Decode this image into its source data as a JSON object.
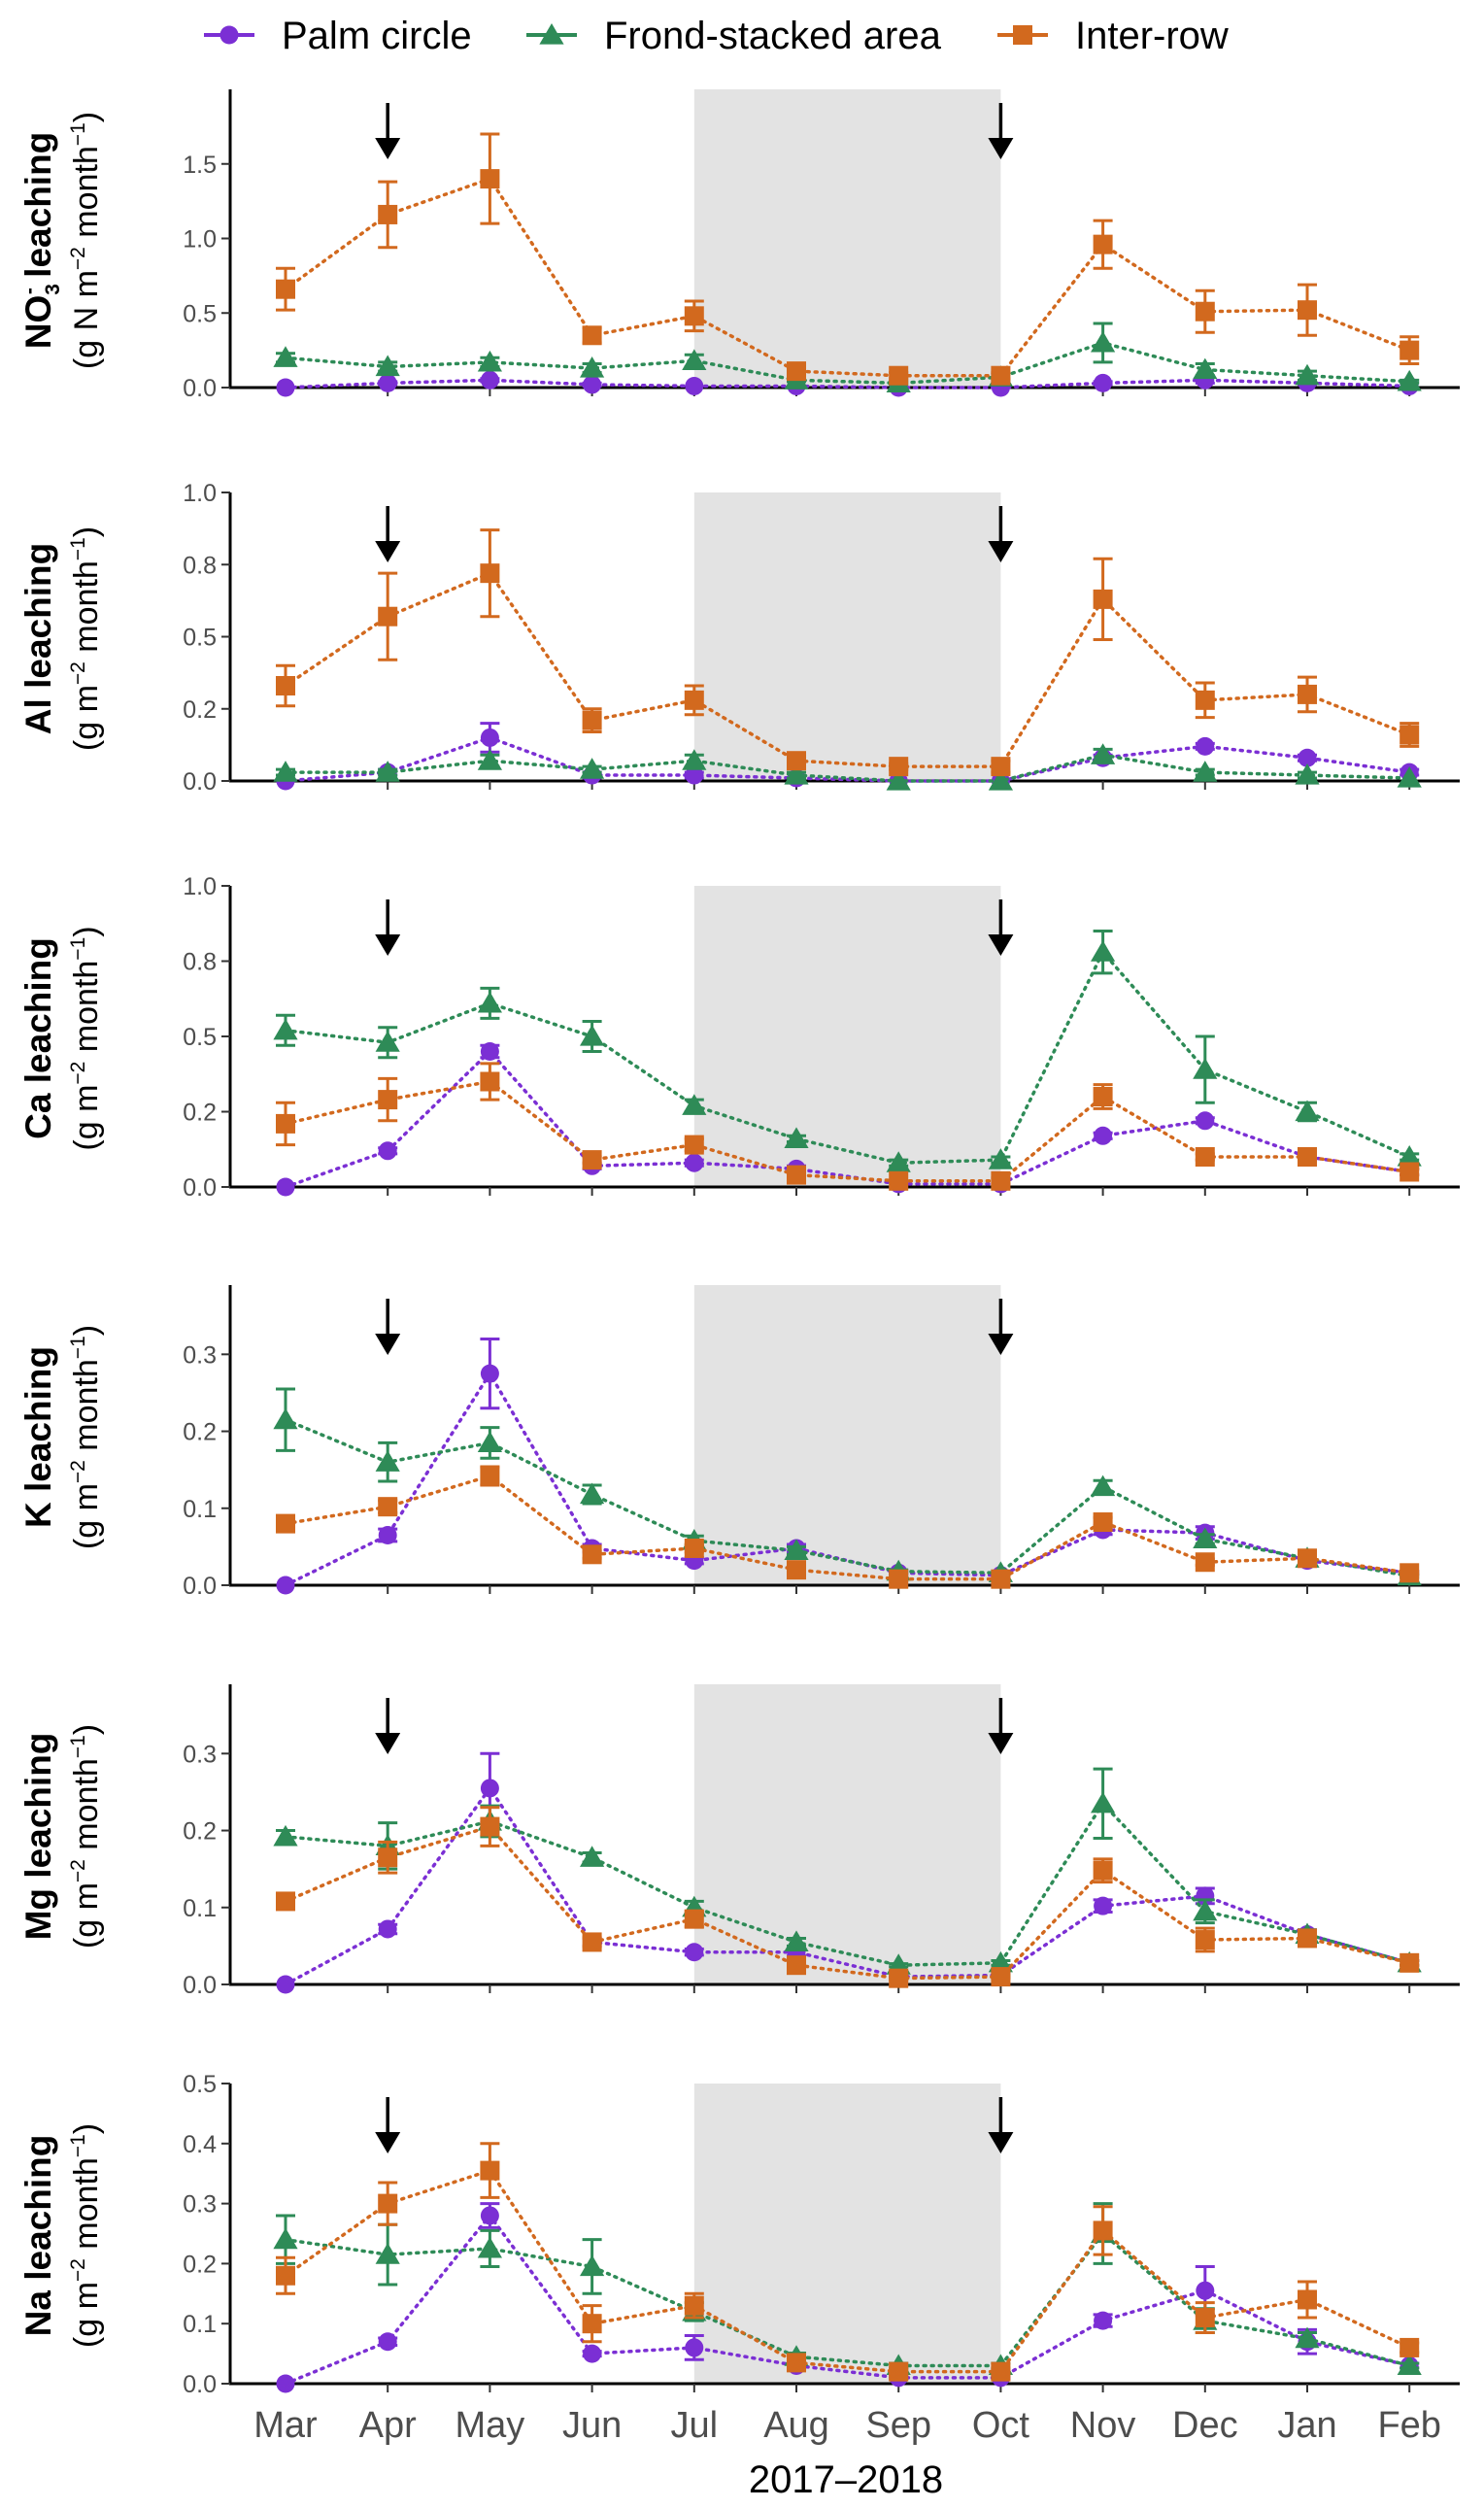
{
  "chart_data": {
    "type": "line",
    "x_label": "2017–2018",
    "months": [
      "Mar",
      "Apr",
      "May",
      "Jun",
      "Jul",
      "Aug",
      "Sep",
      "Oct",
      "Nov",
      "Dec",
      "Jan",
      "Feb"
    ],
    "shaded_period": [
      "Jul",
      "Oct"
    ],
    "arrow_months": [
      "Apr",
      "Oct"
    ],
    "legend": [
      {
        "name": "Palm circle",
        "color": "#7B2FD4",
        "marker": "circle"
      },
      {
        "name": "Frond-stacked area",
        "color": "#2E8B57",
        "marker": "triangle"
      },
      {
        "name": "Inter-row",
        "color": "#D2691E",
        "marker": "square"
      }
    ],
    "panels": [
      {
        "id": "no3",
        "title_main": "NO",
        "title_sub": "3",
        "title_sup": "-",
        "title_rest": " leaching",
        "unit": "(g N  m",
        "unit_sup1": "−2",
        "unit_mid": " month",
        "unit_sup2": "−1",
        "unit_end": ")",
        "ylim": [
          0,
          2.0
        ],
        "yticks": [
          0.0,
          0.5,
          1.0,
          1.5
        ],
        "ytick_labels": [
          "0.0",
          "0.5",
          "1.0",
          "1.5"
        ],
        "series": [
          {
            "name": "Palm circle",
            "values": [
              0.0,
              0.03,
              0.05,
              0.02,
              0.01,
              0.01,
              0.0,
              0.0,
              0.03,
              0.05,
              0.03,
              0.01
            ],
            "err": [
              0,
              0.01,
              0.01,
              0.01,
              0,
              0,
              0,
              0,
              0.01,
              0.02,
              0.01,
              0
            ]
          },
          {
            "name": "Frond-stacked area",
            "values": [
              0.2,
              0.14,
              0.17,
              0.13,
              0.18,
              0.05,
              0.03,
              0.07,
              0.3,
              0.12,
              0.08,
              0.04
            ],
            "err": [
              0.03,
              0.03,
              0.03,
              0.03,
              0.04,
              0.01,
              0.01,
              0.02,
              0.13,
              0.04,
              0.03,
              0.01
            ]
          },
          {
            "name": "Inter-row",
            "values": [
              0.66,
              1.16,
              1.4,
              0.35,
              0.48,
              0.11,
              0.08,
              0.08,
              0.96,
              0.51,
              0.52,
              0.25
            ],
            "err": [
              0.14,
              0.22,
              0.3,
              0.05,
              0.1,
              0.02,
              0.02,
              0.02,
              0.16,
              0.14,
              0.17,
              0.09
            ]
          }
        ]
      },
      {
        "id": "al",
        "title_main": "Al leaching",
        "unit": "(g m",
        "unit_sup1": "−2",
        "unit_mid": " month",
        "unit_sup2": "−1",
        "unit_end": ")",
        "ylim": [
          0,
          1.0
        ],
        "yticks": [
          0.0,
          0.25,
          0.5,
          0.75,
          1.0
        ],
        "ytick_labels": [
          "0.0",
          "0.2",
          "0.5",
          "0.8",
          "1.0"
        ],
        "series": [
          {
            "name": "Palm circle",
            "values": [
              0.0,
              0.03,
              0.15,
              0.02,
              0.02,
              0.01,
              0.0,
              0.0,
              0.08,
              0.12,
              0.08,
              0.03
            ],
            "err": [
              0,
              0.01,
              0.05,
              0.01,
              0.01,
              0,
              0,
              0,
              0.01,
              0.01,
              0.01,
              0.01
            ]
          },
          {
            "name": "Frond-stacked area",
            "values": [
              0.03,
              0.03,
              0.07,
              0.04,
              0.07,
              0.02,
              0.0,
              0.0,
              0.09,
              0.03,
              0.02,
              0.01
            ],
            "err": [
              0.01,
              0.01,
              0.02,
              0.01,
              0.02,
              0.01,
              0,
              0,
              0.02,
              0.01,
              0.01,
              0
            ]
          },
          {
            "name": "Inter-row",
            "values": [
              0.33,
              0.57,
              0.72,
              0.21,
              0.28,
              0.07,
              0.05,
              0.05,
              0.63,
              0.28,
              0.3,
              0.16
            ],
            "err": [
              0.07,
              0.15,
              0.15,
              0.04,
              0.05,
              0.02,
              0.01,
              0.02,
              0.14,
              0.06,
              0.06,
              0.04
            ]
          }
        ]
      },
      {
        "id": "ca",
        "title_main": "Ca leaching",
        "unit": "(g m",
        "unit_sup1": "−2",
        "unit_mid": " month",
        "unit_sup2": "−1",
        "unit_end": ")",
        "ylim": [
          0,
          1.0
        ],
        "yticks": [
          0.0,
          0.25,
          0.5,
          0.75,
          1.0
        ],
        "ytick_labels": [
          "0.0",
          "0.2",
          "0.5",
          "0.8",
          "1.0"
        ],
        "series": [
          {
            "name": "Palm circle",
            "values": [
              0.0,
              0.12,
              0.45,
              0.07,
              0.08,
              0.06,
              0.01,
              0.01,
              0.17,
              0.22,
              0.1,
              0.05
            ],
            "err": [
              0,
              0.01,
              0.02,
              0.01,
              0.01,
              0.01,
              0,
              0,
              0.01,
              0.01,
              0.01,
              0.01
            ]
          },
          {
            "name": "Frond-stacked area",
            "values": [
              0.52,
              0.48,
              0.61,
              0.5,
              0.27,
              0.16,
              0.08,
              0.09,
              0.78,
              0.39,
              0.25,
              0.1
            ],
            "err": [
              0.05,
              0.05,
              0.05,
              0.05,
              0.02,
              0.01,
              0.01,
              0.01,
              0.07,
              0.11,
              0.03,
              0.01
            ]
          },
          {
            "name": "Inter-row",
            "values": [
              0.21,
              0.29,
              0.35,
              0.09,
              0.14,
              0.04,
              0.02,
              0.02,
              0.3,
              0.1,
              0.1,
              0.05
            ],
            "err": [
              0.07,
              0.07,
              0.06,
              0.01,
              0.02,
              0.01,
              0,
              0.01,
              0.04,
              0.01,
              0.01,
              0.01
            ]
          }
        ]
      },
      {
        "id": "k",
        "title_main": "K leaching",
        "unit": "(g m",
        "unit_sup1": "−2",
        "unit_mid": " month",
        "unit_sup2": "−1",
        "unit_end": ")",
        "ylim": [
          0,
          0.39
        ],
        "yticks": [
          0.0,
          0.1,
          0.2,
          0.3
        ],
        "ytick_labels": [
          "0.0",
          "0.1",
          "0.2",
          "0.3"
        ],
        "series": [
          {
            "name": "Palm circle",
            "values": [
              0.0,
              0.065,
              0.275,
              0.048,
              0.032,
              0.048,
              0.016,
              0.013,
              0.072,
              0.068,
              0.032,
              0.016
            ],
            "err": [
              0,
              0.008,
              0.045,
              0.005,
              0.004,
              0.005,
              0.002,
              0.002,
              0.006,
              0.008,
              0.004,
              0.002
            ]
          },
          {
            "name": "Frond-stacked area",
            "values": [
              0.215,
              0.16,
              0.185,
              0.118,
              0.058,
              0.045,
              0.018,
              0.016,
              0.128,
              0.06,
              0.035,
              0.012
            ],
            "err": [
              0.04,
              0.025,
              0.02,
              0.012,
              0.006,
              0.005,
              0.002,
              0.002,
              0.008,
              0.006,
              0.004,
              0.002
            ]
          },
          {
            "name": "Inter-row",
            "values": [
              0.08,
              0.102,
              0.142,
              0.04,
              0.048,
              0.02,
              0.008,
              0.008,
              0.082,
              0.03,
              0.035,
              0.016
            ],
            "err": [
              0.005,
              0.008,
              0.012,
              0.005,
              0.005,
              0.003,
              0.002,
              0.002,
              0.006,
              0.004,
              0.004,
              0.002
            ]
          }
        ]
      },
      {
        "id": "mg",
        "title_main": "Mg leaching",
        "unit": "(g m",
        "unit_sup1": "−2",
        "unit_mid": " month",
        "unit_sup2": "−1",
        "unit_end": ")",
        "ylim": [
          0,
          0.39
        ],
        "yticks": [
          0.0,
          0.1,
          0.2,
          0.3
        ],
        "ytick_labels": [
          "0.0",
          "0.1",
          "0.2",
          "0.3"
        ],
        "series": [
          {
            "name": "Palm circle",
            "values": [
              0.0,
              0.072,
              0.255,
              0.055,
              0.042,
              0.042,
              0.01,
              0.012,
              0.102,
              0.115,
              0.065,
              0.028
            ],
            "err": [
              0,
              0.006,
              0.045,
              0.005,
              0.004,
              0.005,
              0.002,
              0.002,
              0.008,
              0.01,
              0.006,
              0.003
            ]
          },
          {
            "name": "Frond-stacked area",
            "values": [
              0.192,
              0.18,
              0.212,
              0.165,
              0.1,
              0.055,
              0.025,
              0.028,
              0.235,
              0.095,
              0.065,
              0.028
            ],
            "err": [
              0.008,
              0.03,
              0.02,
              0.006,
              0.008,
              0.005,
              0.002,
              0.003,
              0.045,
              0.015,
              0.006,
              0.003
            ]
          },
          {
            "name": "Inter-row",
            "values": [
              0.108,
              0.165,
              0.205,
              0.055,
              0.085,
              0.025,
              0.008,
              0.01,
              0.148,
              0.058,
              0.06,
              0.028
            ],
            "err": [
              0.004,
              0.02,
              0.025,
              0.006,
              0.01,
              0.004,
              0.002,
              0.002,
              0.015,
              0.015,
              0.01,
              0.003
            ]
          }
        ]
      },
      {
        "id": "na",
        "title_main": "Na leaching",
        "unit": "(g m",
        "unit_sup1": "−2",
        "unit_mid": " month",
        "unit_sup2": "−1",
        "unit_end": ")",
        "ylim": [
          0,
          0.5
        ],
        "yticks": [
          0.0,
          0.1,
          0.2,
          0.3,
          0.4,
          0.5
        ],
        "ytick_labels": [
          "0.0",
          "0.1",
          "0.2",
          "0.3",
          "0.4",
          "0.5"
        ],
        "series": [
          {
            "name": "Palm circle",
            "values": [
              0.0,
              0.07,
              0.28,
              0.05,
              0.06,
              0.03,
              0.01,
              0.01,
              0.105,
              0.155,
              0.07,
              0.03
            ],
            "err": [
              0,
              0.006,
              0.02,
              0.004,
              0.02,
              0.004,
              0.002,
              0.002,
              0.01,
              0.04,
              0.02,
              0.004
            ]
          },
          {
            "name": "Frond-stacked area",
            "values": [
              0.24,
              0.215,
              0.225,
              0.195,
              0.12,
              0.045,
              0.03,
              0.03,
              0.25,
              0.105,
              0.075,
              0.03
            ],
            "err": [
              0.04,
              0.05,
              0.03,
              0.045,
              0.015,
              0.006,
              0.004,
              0.004,
              0.05,
              0.02,
              0.01,
              0.004
            ]
          },
          {
            "name": "Inter-row",
            "values": [
              0.18,
              0.3,
              0.355,
              0.1,
              0.13,
              0.035,
              0.02,
              0.02,
              0.255,
              0.11,
              0.14,
              0.06
            ],
            "err": [
              0.03,
              0.035,
              0.045,
              0.03,
              0.02,
              0.006,
              0.004,
              0.004,
              0.04,
              0.025,
              0.03,
              0.008
            ]
          }
        ]
      }
    ]
  }
}
